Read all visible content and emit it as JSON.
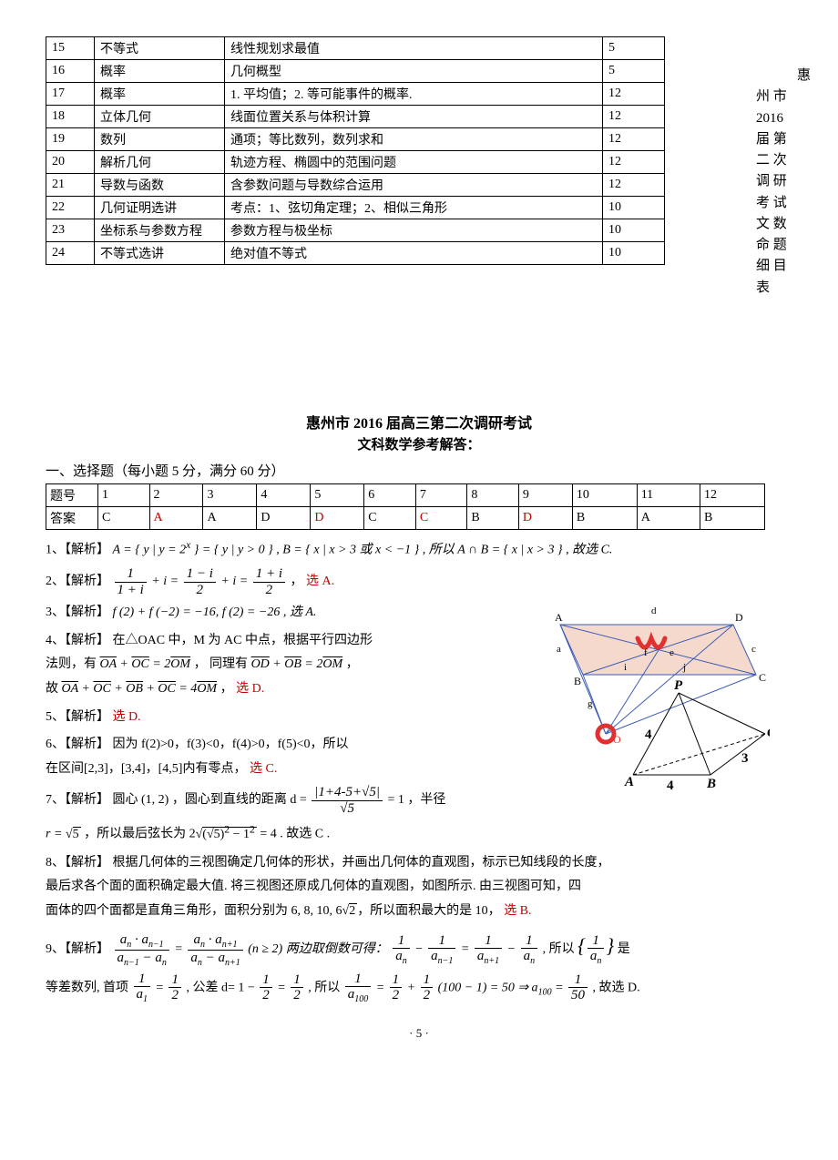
{
  "sideText": {
    "c1": "惠",
    "c2": "州 市",
    "c3": "2016",
    "c4": "届 第",
    "c5": "二 次",
    "c6": "调 研",
    "c7": "考 试",
    "c8": "文 数",
    "c9": "命 题",
    "c10": "细 目",
    "c11": "表"
  },
  "specsRows": [
    {
      "n": "15",
      "t": "不等式",
      "d": "线性规划求最值",
      "p": "5"
    },
    {
      "n": "16",
      "t": "概率",
      "d": "几何概型",
      "p": "5"
    },
    {
      "n": "17",
      "t": "概率",
      "d": "1. 平均值；2. 等可能事件的概率.",
      "p": "12"
    },
    {
      "n": "18",
      "t": "立体几何",
      "d": "线面位置关系与体积计算",
      "p": "12"
    },
    {
      "n": "19",
      "t": "数列",
      "d": "通项；等比数列，数列求和",
      "p": "12"
    },
    {
      "n": "20",
      "t": "解析几何",
      "d": "轨迹方程、椭圆中的范围问题",
      "p": "12"
    },
    {
      "n": "21",
      "t": "导数与函数",
      "d": "含参数问题与导数综合运用",
      "p": "12"
    },
    {
      "n": "22",
      "t": "几何证明选讲",
      "d": "考点：1、弦切角定理；2、相似三角形",
      "p": "10"
    },
    {
      "n": "23",
      "t": "坐标系与参数方程",
      "d": "参数方程与极坐标",
      "p": "10"
    },
    {
      "n": "24",
      "t": "不等式选讲",
      "d": "绝对值不等式",
      "p": "10"
    }
  ],
  "titles": {
    "main": "惠州市 2016 届高三第二次调研考试",
    "sub": "文科数学参考解答："
  },
  "sectionHeading": "一、选择题（每小题 5 分，满分 60 分）",
  "answerHead": {
    "row": "题号",
    "ans": "答案"
  },
  "answerNums": [
    "1",
    "2",
    "3",
    "4",
    "5",
    "6",
    "7",
    "8",
    "9",
    "10",
    "11",
    "12"
  ],
  "answerVals": [
    {
      "v": "C",
      "red": false
    },
    {
      "v": "A",
      "red": true
    },
    {
      "v": "A",
      "red": false
    },
    {
      "v": "D",
      "red": false
    },
    {
      "v": "D",
      "red": true
    },
    {
      "v": "C",
      "red": false
    },
    {
      "v": "C",
      "red": true
    },
    {
      "v": "B",
      "red": false
    },
    {
      "v": "D",
      "red": true
    },
    {
      "v": "B",
      "red": false
    },
    {
      "v": "A",
      "red": false
    },
    {
      "v": "B",
      "red": false
    }
  ],
  "labels": {
    "sol": "【解析】",
    "chooseA": "选 A.",
    "chooseB": "选 B.",
    "chooseC": "选 C.",
    "chooseD": "选 D."
  },
  "sol1": {
    "prefix": "1、",
    "text_a": "A = { y | y = 2",
    "text_a2": " } = { y | y > 0 } ,  B = { x | x > 3 或 x < −1 } , 所以 A ∩ B = { x | x > 3 } , 故选 C."
  },
  "sol2": {
    "prefix": "2、",
    "tail": " ，"
  },
  "sol3": {
    "prefix": "3、",
    "body": "f (2) + f (−2) = −16, f (2) = −26 , 选 A."
  },
  "sol4": {
    "prefix": "4、",
    "l1": "在△OAC 中，M 为 AC 中点，根据平行四边形",
    "l2a": "法则，有 ",
    "l2b": " ， 同理有 ",
    "l2c": " ，",
    "l3a": "故 ",
    "l3b": " ，",
    "vec_OA": "OA",
    "vec_OC": "OC",
    "vec_OM": "OM",
    "vec_OD": "OD",
    "vec_OB": "OB",
    "eq1": " + ",
    "eq2": " = 2",
    "eq3": " + ",
    "eq4": " + ",
    "eq5": " + ",
    "eq6": " = 4"
  },
  "sol5": {
    "prefix": "5、"
  },
  "sol6": {
    "prefix": "6、",
    "l1": "因为 f(2)>0，f(3)<0，f(4)>0，f(5)<0，所以",
    "l2": "在区间[2,3]，[3,4]，[4,5]内有零点，"
  },
  "sol7": {
    "prefix": "7、",
    "body_a": "圆心 (1, 2) ，圆心到直线的距离 d =",
    "body_b": "= 1 ，半径",
    "frac_num": "|1+4-5+√5|",
    "frac_den": "√5",
    "l2a": "r = ",
    "l2b": " ，所以最后弦长为 2",
    "l2c": " = 4 . 故选 C ."
  },
  "sol8": {
    "prefix": "8、",
    "l1": "根据几何体的三视图确定几何体的形状，并画出几何体的直观图，标示已知线段的长度，",
    "l2": "最后求各个面的面积确定最大值. 将三视图还原成几何体的直观图，如图所示. 由三视图可知，四",
    "l3a": "面体的四个面都是直角三角形，面积分别为 6, 8, 10, 6",
    "l3b": "，所以面积最大的是 10，"
  },
  "sol9": {
    "prefix": "9、",
    "mid": "(n ≥ 2) 两边取倒数可得：",
    "tail": "是",
    "l2a": "等差数列, 首项 ",
    "l2b": " , 公差 d= 1 − ",
    "l2c": " , 所以 ",
    "l2d": " (100 − 1) = 50 ⇒ a",
    "l2e": " , 故选 D."
  },
  "figure": {
    "top": {
      "labels": {
        "A": "A",
        "B": "B",
        "C": "C",
        "D": "D",
        "M": "M",
        "O": "O",
        "a": "a",
        "c": "c",
        "d": "d",
        "e": "e",
        "f": "f",
        "g": "g",
        "i": "i",
        "j": "j"
      },
      "colors": {
        "face": "#f4d9cc",
        "edge": "#3b5bb5",
        "mark": "#e03030"
      }
    },
    "bottom": {
      "labels": {
        "P": "P",
        "A": "A",
        "B": "B",
        "C": "C",
        "four_a": "4",
        "four_b": "4",
        "three": "3"
      }
    }
  },
  "pageNum": "· 5 ·"
}
